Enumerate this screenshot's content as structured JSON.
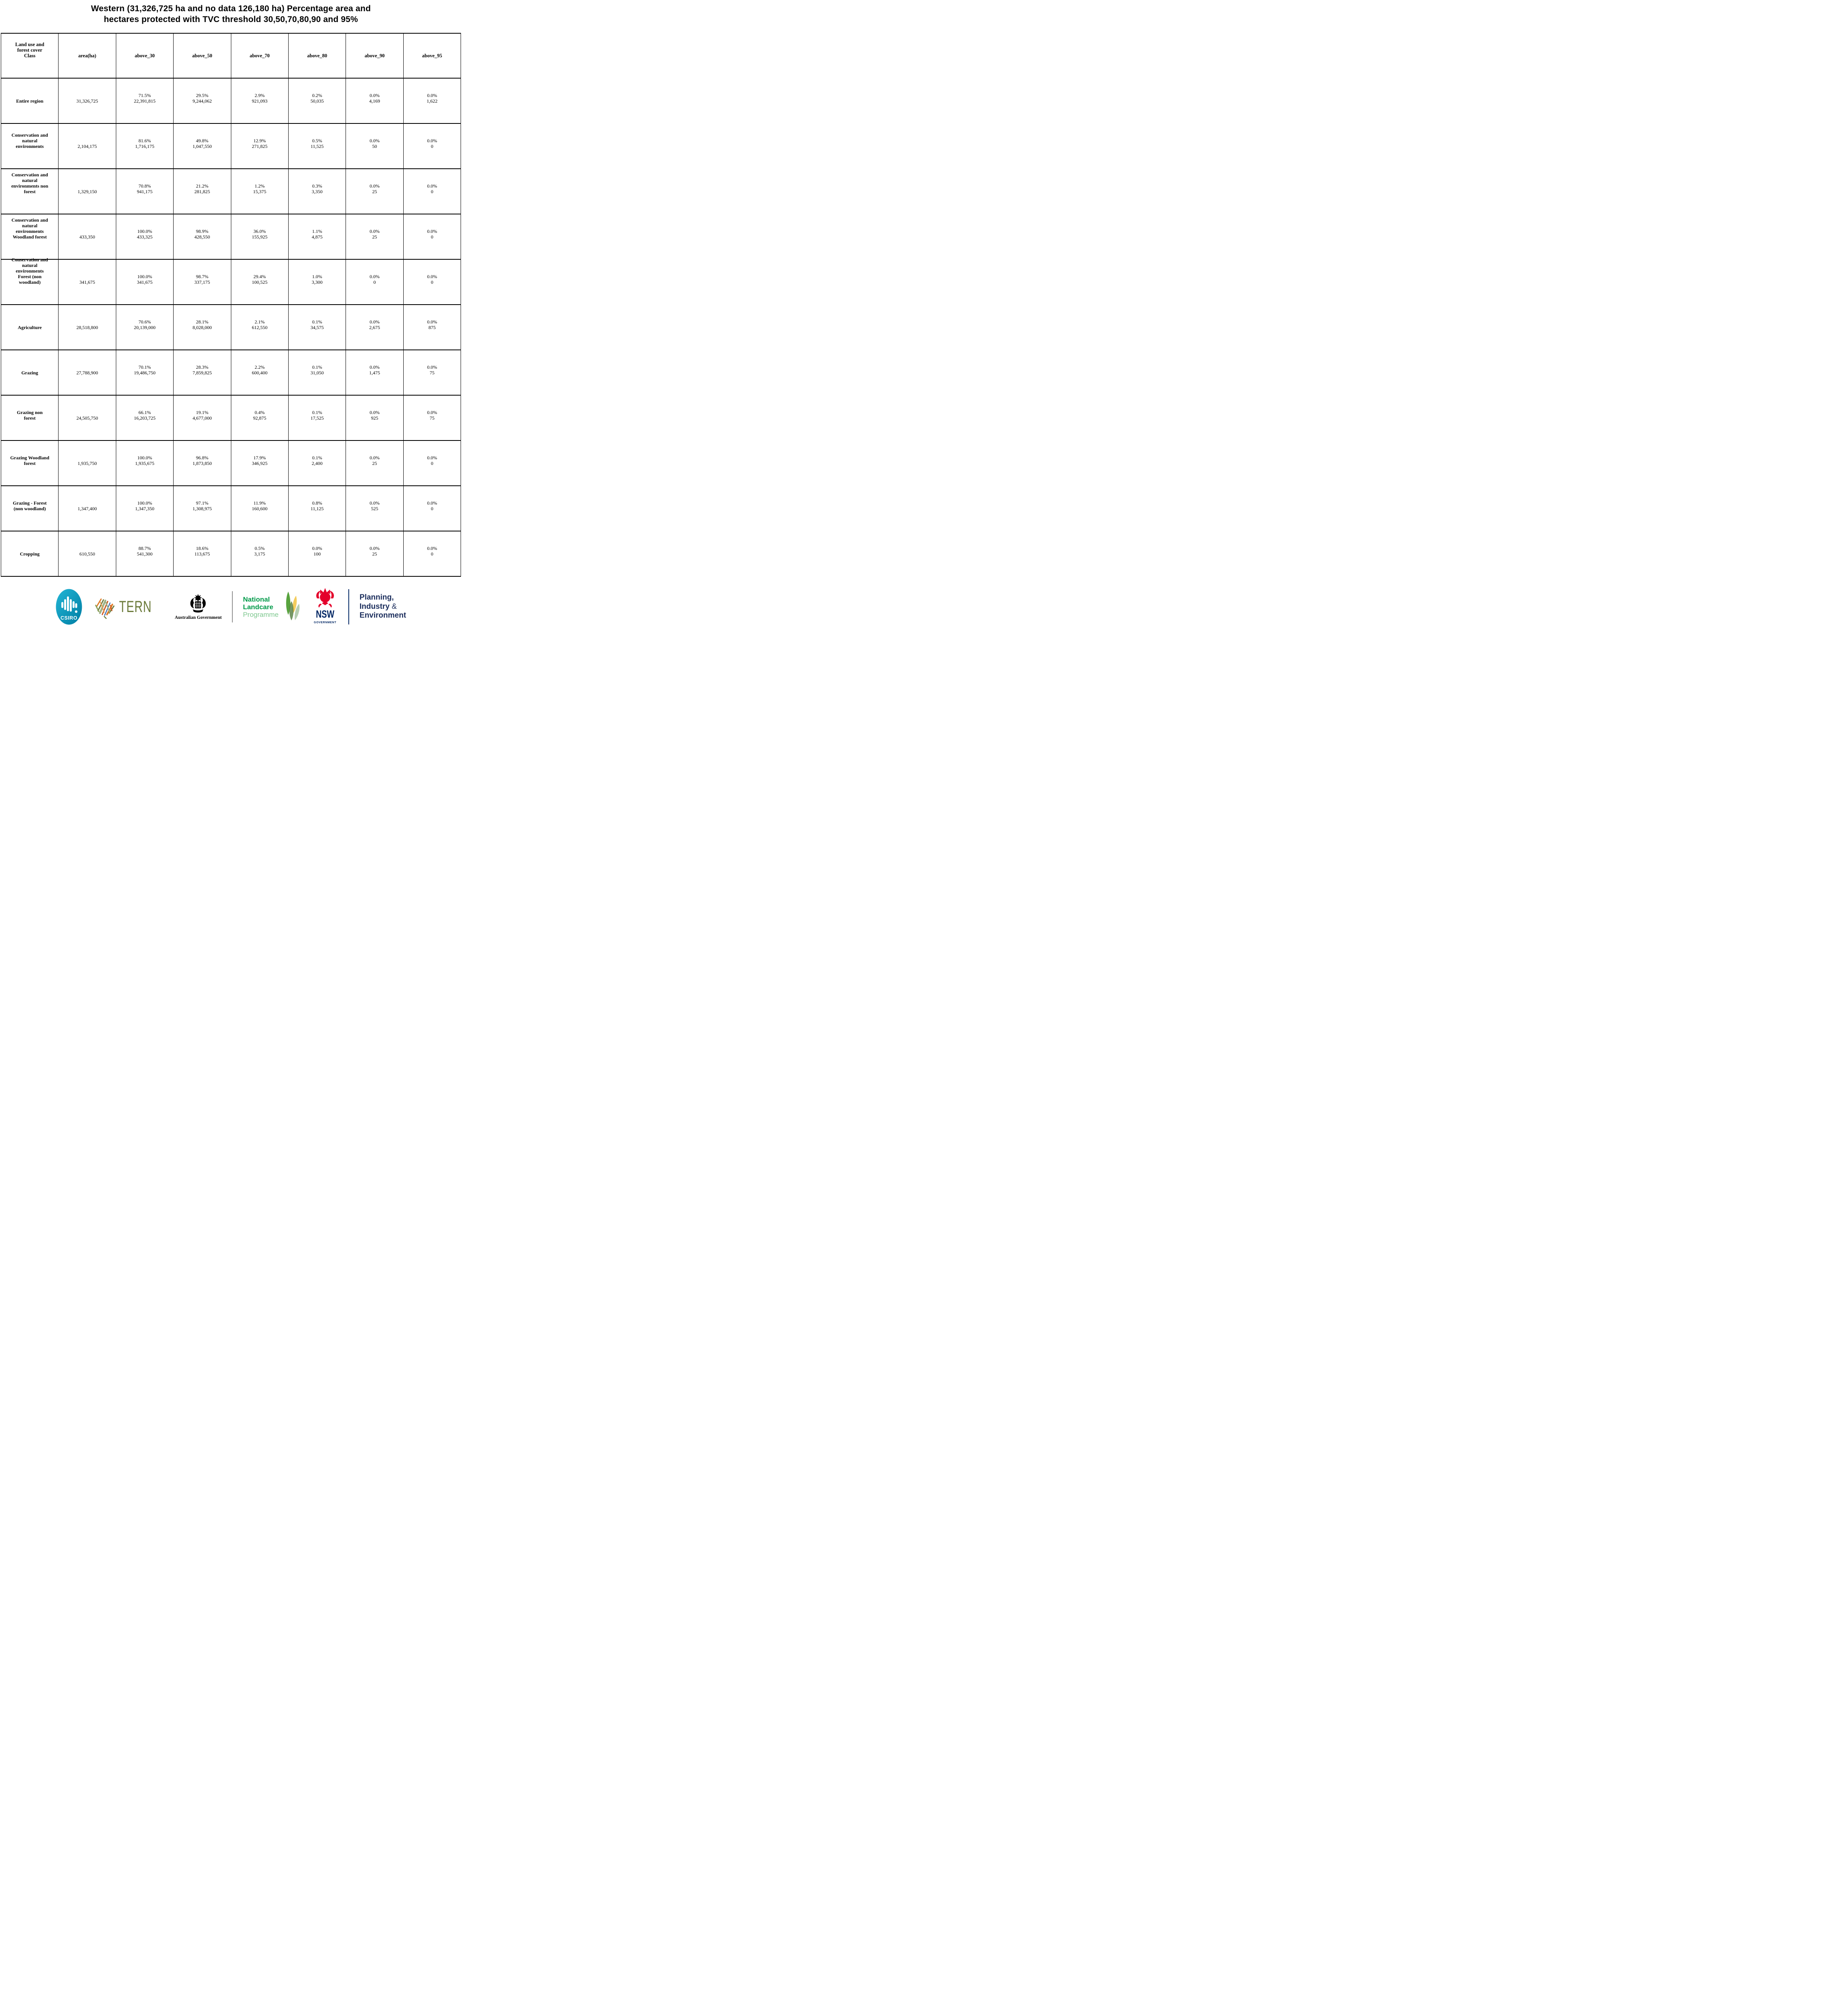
{
  "title": "Western (31,326,725 ha and no data 126,180 ha) Percentage area and\nhectares protected with TVC threshold 30,50,70,80,90 and 95%",
  "table": {
    "columns": [
      "Land use and\nforest cover\nClass",
      "area(ha)",
      "above_30",
      "above_50",
      "above_70",
      "above_80",
      "above_90",
      "above_95"
    ],
    "rows": [
      {
        "label": "Entire region",
        "area": "31,326,725",
        "cells": [
          "71.5%\n22,391,815",
          "29.5%\n9,244,062",
          "2.9%\n921,093",
          "0.2%\n50,035",
          "0.0%\n4,169",
          "0.0%\n1,622"
        ]
      },
      {
        "label": "Conservation and\nnatural\nenvironments",
        "area": "2,104,175",
        "cells": [
          "81.6%\n1,716,175",
          "49.8%\n1,047,550",
          "12.9%\n271,825",
          "0.5%\n11,525",
          "0.0%\n50",
          "0.0%\n0"
        ]
      },
      {
        "label": "Conservation and\nnatural\nenvironments non\nforest",
        "area": "1,329,150",
        "cells": [
          "70.8%\n941,175",
          "21.2%\n281,825",
          "1.2%\n15,375",
          "0.3%\n3,350",
          "0.0%\n25",
          "0.0%\n0"
        ]
      },
      {
        "label": "Conservation and\nnatural\nenvironments\nWoodland forest",
        "area": "433,350",
        "cells": [
          "100.0%\n433,325",
          "98.9%\n428,550",
          "36.0%\n155,925",
          "1.1%\n4,875",
          "0.0%\n25",
          "0.0%\n0"
        ]
      },
      {
        "label": "Conservation and\nnatural\nenvironments\nForest (non\nwoodland)",
        "area": "341,675",
        "cells": [
          "100.0%\n341,675",
          "98.7%\n337,175",
          "29.4%\n100,525",
          "1.0%\n3,300",
          "0.0%\n0",
          "0.0%\n0"
        ]
      },
      {
        "label": "Agriculture",
        "area": "28,518,800",
        "cells": [
          "70.6%\n20,139,000",
          "28.1%\n8,028,000",
          "2.1%\n612,550",
          "0.1%\n34,575",
          "0.0%\n2,675",
          "0.0%\n875"
        ]
      },
      {
        "label": "Grazing",
        "area": "27,788,900",
        "cells": [
          "70.1%\n19,486,750",
          "28.3%\n7,859,825",
          "2.2%\n600,400",
          "0.1%\n31,050",
          "0.0%\n1,475",
          "0.0%\n75"
        ]
      },
      {
        "label": "Grazing non\nforest",
        "area": "24,505,750",
        "cells": [
          "66.1%\n16,203,725",
          "19.1%\n4,677,000",
          "0.4%\n92,875",
          "0.1%\n17,525",
          "0.0%\n925",
          "0.0%\n75"
        ]
      },
      {
        "label": "Grazing Woodland\nforest",
        "area": "1,935,750",
        "cells": [
          "100.0%\n1,935,675",
          "96.8%\n1,873,850",
          "17.9%\n346,925",
          "0.1%\n2,400",
          "0.0%\n25",
          "0.0%\n0"
        ]
      },
      {
        "label": "Grazing - Forest\n(non woodland)",
        "area": "1,347,400",
        "cells": [
          "100.0%\n1,347,350",
          "97.1%\n1,308,975",
          "11.9%\n160,600",
          "0.8%\n11,125",
          "0.0%\n525",
          "0.0%\n0"
        ]
      },
      {
        "label": "Cropping",
        "area": "610,550",
        "cells": [
          "88.7%\n541,300",
          "18.6%\n113,675",
          "0.5%\n3,175",
          "0.0%\n100",
          "0.0%\n25",
          "0.0%\n0"
        ]
      }
    ]
  },
  "footer": {
    "csiro_label": "CSIRO",
    "tern_label": "TERN",
    "ausgov_label": "Australian Government",
    "landcare_line1": "National",
    "landcare_line2": "Landcare",
    "landcare_line3": "Programme",
    "nsw_label": "NSW",
    "nsw_sub": "GOVERNMENT",
    "agency_line1": "Planning,",
    "agency_line2": "Industry",
    "agency_amp": "&",
    "agency_line3": "Environment",
    "colors": {
      "csiro_teal": "#0a92b5",
      "tern_olive": "#6b7a3a",
      "landcare_green": "#009a49",
      "landcare_light_green": "#7ec88f",
      "nsw_red": "#e4002b",
      "nsw_navy": "#002664",
      "agency_navy": "#1b2d5c"
    }
  }
}
